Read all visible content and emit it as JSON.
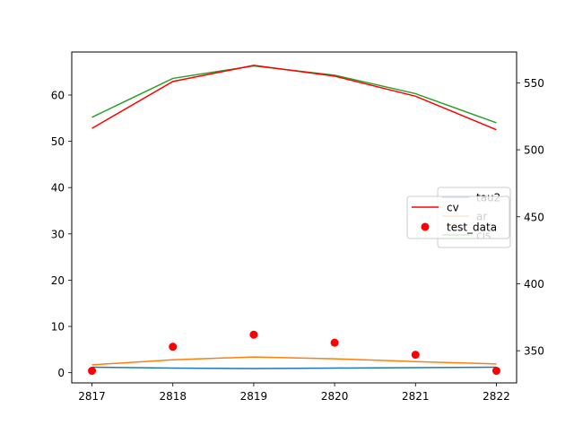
{
  "chart_data": {
    "type": "line",
    "x": [
      2817,
      2818,
      2819,
      2820,
      2821,
      2822
    ],
    "x_ticks": [
      "2817",
      "2818",
      "2819",
      "2820",
      "2821",
      "2822"
    ],
    "left_axis": {
      "ylim": [
        -2.2,
        69.3
      ],
      "ticks": [
        0,
        10,
        20,
        30,
        40,
        50,
        60
      ],
      "tick_labels": [
        "0",
        "10",
        "20",
        "30",
        "40",
        "50",
        "60"
      ]
    },
    "right_axis": {
      "ylim": [
        326,
        573
      ],
      "ticks": [
        350,
        400,
        450,
        500,
        550
      ],
      "tick_labels": [
        "350",
        "400",
        "450",
        "500",
        "550"
      ]
    },
    "series_left": [
      {
        "name": "tau2",
        "color": "#1f77b4",
        "values": [
          1.2,
          1.0,
          0.9,
          1.0,
          1.1,
          1.2
        ]
      },
      {
        "name": "ar",
        "color": "#ff7f0e",
        "values": [
          1.7,
          2.8,
          3.4,
          3.0,
          2.4,
          1.9
        ]
      },
      {
        "name": "cis",
        "color": "#2ca02c",
        "values": [
          55.2,
          63.6,
          66.3,
          64.3,
          60.3,
          54.0
        ]
      }
    ],
    "series_right": [
      {
        "name": "cv",
        "kind": "line",
        "color": "#ff0000",
        "values": [
          516,
          551,
          563,
          555,
          540,
          515
        ]
      },
      {
        "name": "test_data",
        "kind": "scatter",
        "color": "#ff0000",
        "values": [
          335,
          353,
          362,
          356,
          347,
          335
        ]
      }
    ],
    "legend_left": {
      "entries": [
        "tau2",
        "ar",
        "cis"
      ],
      "placement": "center-right"
    },
    "legend_right": {
      "entries": [
        "cv",
        "test_data"
      ],
      "placement": "center-right"
    },
    "grid": false
  }
}
